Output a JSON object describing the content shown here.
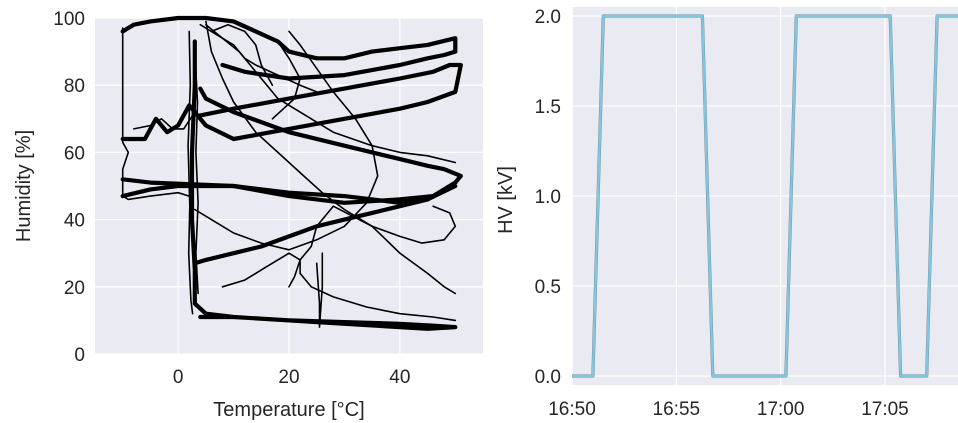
{
  "chart_data": [
    {
      "type": "scatter",
      "style": "connected line loops (hysteresis traces)",
      "xlabel": "Temperature [°C]",
      "ylabel": "Humidity [%]",
      "xlim": [
        -15,
        55
      ],
      "ylim": [
        0,
        100
      ],
      "xticks": [
        "0",
        "20",
        "40"
      ],
      "xtick_values": [
        0,
        20,
        40
      ],
      "yticks": [
        "0",
        "20",
        "40",
        "60",
        "80",
        "100"
      ],
      "ytick_values": [
        0,
        20,
        40,
        60,
        80,
        100
      ],
      "grid": true,
      "background": "#eaeaf2",
      "line_color": "#000000",
      "series": [
        {
          "values": [
            [
              -10,
              64
            ],
            [
              -6,
              64
            ],
            [
              -4,
              70
            ],
            [
              -2,
              66
            ],
            [
              0,
              68
            ],
            [
              2,
              74
            ],
            [
              5,
              68
            ],
            [
              10,
              64
            ],
            [
              20,
              67
            ],
            [
              30,
              70
            ],
            [
              40,
              73
            ],
            [
              45,
              75
            ],
            [
              50,
              78
            ],
            [
              51,
              86
            ],
            [
              49,
              86
            ],
            [
              46,
              84
            ],
            [
              40,
              82
            ],
            [
              30,
              79
            ],
            [
              20,
              76
            ],
            [
              10,
              73
            ],
            [
              4,
              71
            ]
          ]
        },
        {
          "values": [
            [
              -10,
              47
            ],
            [
              -5,
              49
            ],
            [
              0,
              50
            ],
            [
              10,
              50
            ],
            [
              20,
              48
            ],
            [
              30,
              47
            ],
            [
              40,
              45
            ],
            [
              45,
              46
            ],
            [
              50,
              51
            ],
            [
              51,
              53
            ],
            [
              48,
              55
            ],
            [
              45,
              56
            ],
            [
              40,
              58
            ],
            [
              30,
              62
            ],
            [
              20,
              66
            ],
            [
              10,
              72
            ],
            [
              5,
              76
            ],
            [
              4,
              79
            ]
          ]
        },
        {
          "values": [
            [
              3,
              27
            ],
            [
              5,
              28
            ],
            [
              10,
              30
            ],
            [
              15,
              32
            ],
            [
              20,
              35
            ],
            [
              25,
              38
            ],
            [
              30,
              40
            ],
            [
              35,
              42
            ],
            [
              40,
              44
            ],
            [
              45,
              46
            ],
            [
              50,
              50
            ],
            [
              46,
              47
            ],
            [
              40,
              46
            ],
            [
              30,
              45
            ],
            [
              20,
              47
            ],
            [
              10,
              50
            ],
            [
              -5,
              51
            ],
            [
              -10,
              52
            ]
          ]
        },
        {
          "values": [
            [
              -10,
              96
            ],
            [
              -8,
              98
            ],
            [
              -5,
              99
            ],
            [
              0,
              100
            ],
            [
              5,
              100
            ],
            [
              10,
              99
            ],
            [
              14,
              96
            ],
            [
              18,
              93
            ],
            [
              20,
              90
            ],
            [
              25,
              88
            ],
            [
              30,
              88
            ],
            [
              35,
              90
            ],
            [
              40,
              91
            ],
            [
              45,
              92
            ],
            [
              50,
              94
            ],
            [
              50,
              90
            ],
            [
              48,
              89
            ],
            [
              45,
              88
            ],
            [
              40,
              86
            ],
            [
              30,
              83
            ],
            [
              20,
              82
            ],
            [
              12,
              84
            ],
            [
              8,
              86
            ]
          ]
        },
        {
          "values": [
            [
              3,
              93
            ],
            [
              3,
              80
            ],
            [
              2.5,
              60
            ],
            [
              2.5,
              40
            ],
            [
              3,
              25
            ],
            [
              3,
              15
            ],
            [
              5,
              12
            ],
            [
              10,
              11
            ],
            [
              20,
              10
            ],
            [
              30,
              9.5
            ],
            [
              40,
              9
            ],
            [
              45,
              8.5
            ],
            [
              50,
              8
            ],
            [
              45,
              7.5
            ],
            [
              40,
              8
            ],
            [
              30,
              9
            ],
            [
              20,
              10
            ],
            [
              10,
              11
            ],
            [
              4,
              11
            ]
          ]
        },
        {
          "values": [
            [
              5,
              99
            ],
            [
              6,
              90
            ],
            [
              8,
              82
            ],
            [
              10,
              75
            ],
            [
              14,
              66
            ],
            [
              18,
              60
            ],
            [
              22,
              54
            ],
            [
              26,
              48
            ],
            [
              30,
              43
            ],
            [
              35,
              38
            ],
            [
              40,
              35
            ],
            [
              44,
              33
            ],
            [
              48,
              34
            ],
            [
              50,
              38
            ],
            [
              49,
              42
            ],
            [
              46,
              44
            ]
          ]
        },
        {
          "values": [
            [
              20,
              20
            ],
            [
              21,
              23
            ],
            [
              22,
              28
            ],
            [
              24,
              32
            ],
            [
              25,
              38
            ],
            [
              28,
              44
            ],
            [
              35,
              38
            ],
            [
              40,
              30
            ],
            [
              45,
              24
            ],
            [
              48,
              20
            ],
            [
              50,
              18
            ]
          ]
        },
        {
          "values": [
            [
              -10,
              97
            ],
            [
              -10,
              80
            ],
            [
              -10,
              63
            ],
            [
              -9,
              60
            ],
            [
              -10,
              55
            ],
            [
              -10,
              47
            ],
            [
              -9,
              46
            ],
            [
              -5,
              47
            ],
            [
              0,
              48
            ],
            [
              2,
              47
            ]
          ]
        },
        {
          "values": [
            [
              5,
              98
            ],
            [
              8,
              94
            ],
            [
              11,
              90
            ],
            [
              13,
              86
            ],
            [
              15,
              82
            ],
            [
              18,
              76
            ],
            [
              22,
              72
            ],
            [
              28,
              66
            ],
            [
              35,
              62
            ],
            [
              40,
              60
            ],
            [
              45,
              59
            ],
            [
              50,
              57
            ]
          ]
        },
        {
          "values": [
            [
              3,
              43
            ],
            [
              6,
              40
            ],
            [
              10,
              36
            ],
            [
              15,
              33
            ],
            [
              20,
              31
            ],
            [
              25,
              34
            ],
            [
              30,
              38
            ],
            [
              34,
              45
            ],
            [
              36,
              53
            ],
            [
              35,
              62
            ],
            [
              32,
              70
            ],
            [
              28,
              78
            ],
            [
              25,
              85
            ],
            [
              22,
              92
            ],
            [
              20,
              96
            ]
          ]
        },
        {
          "values": [
            [
              18,
              93
            ],
            [
              20,
              88
            ],
            [
              22,
              82
            ],
            [
              21,
              76
            ],
            [
              19,
              73
            ],
            [
              17,
              70
            ]
          ]
        },
        {
          "values": [
            [
              8,
              20
            ],
            [
              12,
              22
            ],
            [
              16,
              26
            ],
            [
              20,
              30
            ],
            [
              22,
              28
            ],
            [
              22,
              24
            ],
            [
              24,
              20
            ],
            [
              28,
              17
            ],
            [
              34,
              14
            ],
            [
              40,
              12
            ],
            [
              46,
              11
            ],
            [
              50,
              10
            ]
          ]
        },
        {
          "values": [
            [
              -8,
              67
            ],
            [
              -5,
              68
            ],
            [
              -3,
              70
            ],
            [
              -1,
              67
            ],
            [
              1,
              67
            ],
            [
              3,
              72
            ]
          ]
        },
        {
          "values": [
            [
              4,
              98
            ],
            [
              7,
              95
            ],
            [
              10,
              92
            ],
            [
              12,
              88
            ],
            [
              14,
              86
            ],
            [
              18,
              83
            ],
            [
              22,
              80
            ],
            [
              25,
              78
            ]
          ]
        },
        {
          "values": [
            [
              3,
              90
            ],
            [
              3.5,
              75
            ],
            [
              3.2,
              60
            ],
            [
              3.6,
              45
            ],
            [
              3.2,
              30
            ],
            [
              3.6,
              18
            ]
          ]
        },
        {
          "values": [
            [
              2,
              96
            ],
            [
              2.2,
              80
            ],
            [
              1.8,
              62
            ],
            [
              2.1,
              44
            ],
            [
              1.9,
              30
            ],
            [
              2.3,
              16
            ],
            [
              2.6,
              12
            ]
          ]
        },
        {
          "values": [
            [
              25,
              27
            ],
            [
              25.5,
              15
            ],
            [
              25.5,
              8
            ],
            [
              26,
              20
            ],
            [
              26,
              30
            ]
          ]
        },
        {
          "values": [
            [
              6,
              96
            ],
            [
              9,
              98
            ],
            [
              12,
              96
            ],
            [
              14,
              92
            ],
            [
              15,
              86
            ],
            [
              17,
              80
            ]
          ]
        }
      ]
    },
    {
      "type": "line",
      "xlabel": "",
      "ylabel": "HV [kV]",
      "xlim": [
        "16:50",
        "17:08:30"
      ],
      "ylim": [
        -0.05,
        2.05
      ],
      "xticks": [
        "16:50",
        "16:55",
        "17:00",
        "17:05"
      ],
      "yticks": [
        "0.0",
        "0.5",
        "1.0",
        "1.5",
        "2.0"
      ],
      "ytick_values": [
        0.0,
        0.5,
        1.0,
        1.5,
        2.0
      ],
      "grid": true,
      "background": "#eaeaf2",
      "line_colors": [
        "#808080",
        "#7ec8e3"
      ],
      "series": [
        {
          "x": [
            "16:50:00",
            "16:51:00",
            "16:51:30",
            "16:56:15",
            "16:56:45",
            "17:00:15",
            "17:00:45",
            "17:05:15",
            "17:05:45",
            "17:07:00",
            "17:07:30",
            "17:08:30"
          ],
          "values": [
            0.0,
            0.0,
            2.0,
            2.0,
            0.0,
            0.0,
            2.0,
            2.0,
            0.0,
            0.0,
            2.0,
            2.0
          ]
        },
        {
          "x": [
            "16:50:00",
            "16:51:00",
            "16:51:30",
            "16:56:15",
            "16:56:45",
            "17:00:15",
            "17:00:45",
            "17:05:15",
            "17:05:45",
            "17:07:00",
            "17:07:30",
            "17:08:30"
          ],
          "values": [
            0.0,
            0.0,
            2.0,
            2.0,
            0.0,
            0.0,
            2.0,
            2.0,
            0.0,
            0.0,
            2.0,
            2.0
          ]
        }
      ]
    }
  ]
}
